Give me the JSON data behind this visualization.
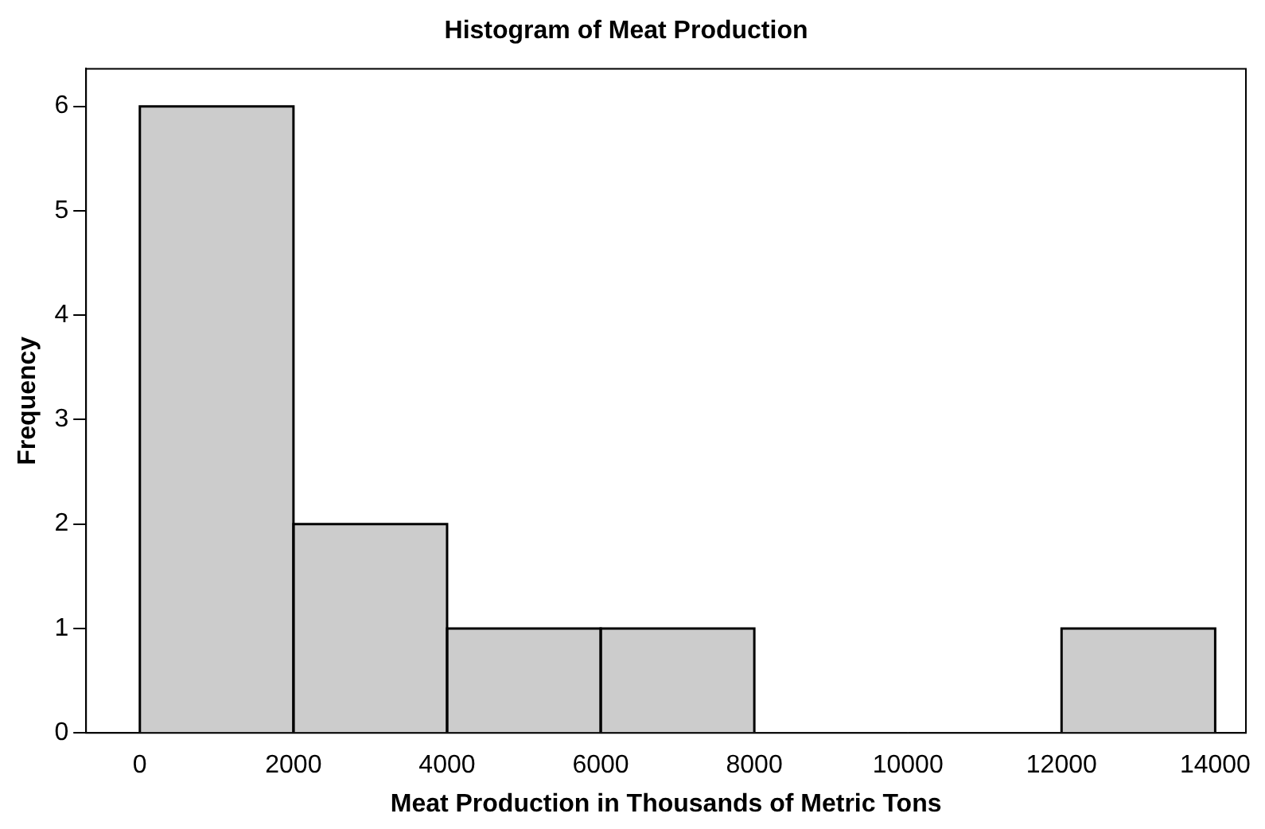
{
  "chart_data": {
    "type": "histogram",
    "title": "Histogram of Meat Production",
    "xlabel": "Meat Production in Thousands of Metric Tons",
    "ylabel": "Frequency",
    "bins": [
      0,
      2000,
      4000,
      6000,
      8000,
      10000,
      12000,
      14000
    ],
    "values": [
      6,
      2,
      1,
      1,
      0,
      0,
      1
    ],
    "color": "#cccccc",
    "xlim": [
      -700,
      14400
    ],
    "xticks": [
      0,
      2000,
      4000,
      6000,
      8000,
      10000,
      12000,
      14000
    ],
    "ylim": [
      0,
      6.36
    ],
    "yticks": [
      0,
      1,
      2,
      3,
      4,
      5,
      6
    ],
    "grid": false,
    "legend": false
  }
}
